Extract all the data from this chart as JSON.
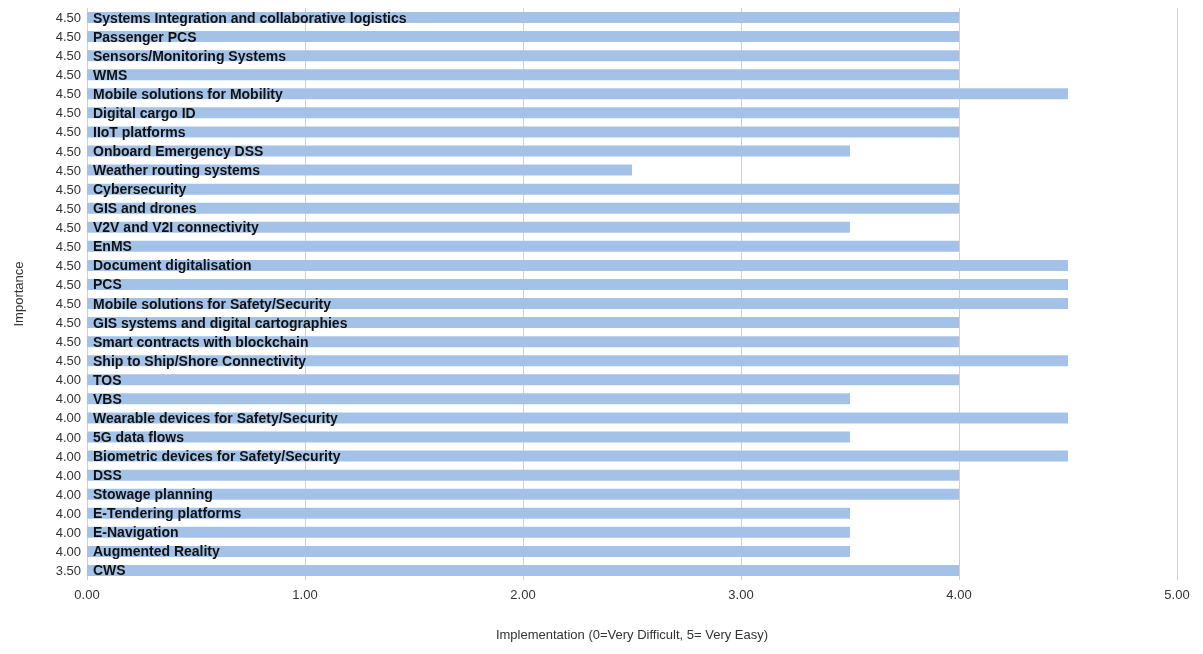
{
  "chart_data": {
    "type": "bar",
    "orientation": "horizontal",
    "xlabel": "Implementation (0=Very Difficult, 5= Very Easy)",
    "ylabel": "Importance",
    "categories": [
      "4.50",
      "4.50",
      "4.50",
      "4.50",
      "4.50",
      "4.50",
      "4.50",
      "4.50",
      "4.50",
      "4.50",
      "4.50",
      "4.50",
      "4.50",
      "4.50",
      "4.50",
      "4.50",
      "4.50",
      "4.50",
      "4.50",
      "4.00",
      "4.00",
      "4.00",
      "4.00",
      "4.00",
      "4.00",
      "4.00",
      "4.00",
      "4.00",
      "4.00",
      "3.50"
    ],
    "values": [
      4.0,
      4.0,
      4.0,
      4.0,
      4.5,
      4.0,
      4.0,
      3.5,
      2.5,
      4.0,
      4.0,
      3.5,
      4.0,
      4.5,
      4.5,
      4.5,
      4.0,
      4.0,
      4.5,
      4.0,
      3.5,
      4.5,
      3.5,
      4.5,
      4.0,
      4.0,
      3.5,
      3.5,
      3.5,
      4.0
    ],
    "annotations": [
      "Systems Integration and collaborative logistics",
      "Passenger PCS",
      "Sensors/Monitoring Systems",
      "WMS",
      "Mobile solutions for Mobility",
      "Digital cargo ID",
      "IIoT platforms",
      "Onboard Emergency DSS",
      "Weather routing systems",
      "Cybersecurity",
      "GIS and drones",
      "V2V and V2I connectivity",
      "EnMS",
      "Document digitalisation",
      "PCS",
      "Mobile solutions for Safety/Security",
      "GIS systems and digital cartographies",
      "Smart contracts with blockchain",
      "Ship to Ship/Shore Connectivity",
      "TOS",
      "VBS",
      "Wearable devices for Safety/Security",
      "5G data flows",
      "Biometric devices for Safety/Security",
      "DSS",
      "Stowage planning",
      "E-Tendering platforms",
      "E-Navigation",
      "Augmented Reality",
      "CWS"
    ],
    "color": "#a4c2e8",
    "xlim": [
      0,
      5
    ],
    "xticks": [
      {
        "value": 0,
        "label": "0.00"
      },
      {
        "value": 1,
        "label": "1.00"
      },
      {
        "value": 2,
        "label": "2.00"
      },
      {
        "value": 3,
        "label": "3.00"
      },
      {
        "value": 4,
        "label": "4.00"
      },
      {
        "value": 5,
        "label": "5.00"
      }
    ],
    "grid": "x"
  }
}
